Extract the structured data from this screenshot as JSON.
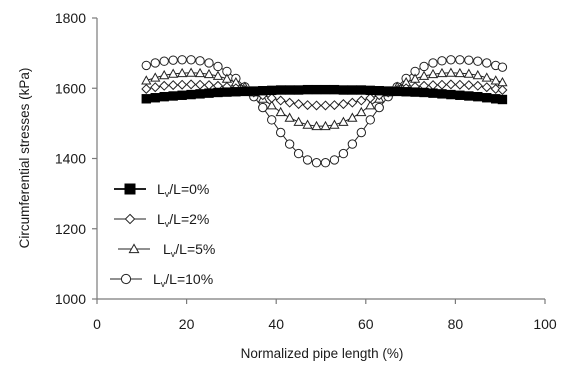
{
  "chart_data": {
    "type": "line",
    "title": "",
    "xlabel": "Normalized pipe length (%)",
    "ylabel": "Circumferential stresses (kPa)",
    "xlim": [
      0,
      100
    ],
    "ylim": [
      1000,
      1800
    ],
    "x_ticks": [
      "0",
      "20",
      "40",
      "60",
      "80",
      "100"
    ],
    "y_ticks": [
      "1000",
      "1200",
      "1400",
      "1600",
      "1800"
    ],
    "grid": false,
    "legend_position": "left",
    "x": [
      11,
      13,
      15,
      17,
      19,
      21,
      23,
      25,
      27,
      29,
      31,
      33,
      35,
      37,
      39,
      41,
      43,
      45,
      47,
      49,
      51,
      53,
      55,
      57,
      59,
      61,
      63,
      65,
      67,
      69,
      71,
      73,
      75,
      77,
      79,
      81,
      83,
      85,
      87,
      89,
      90.5
    ],
    "series": [
      {
        "name": "Lv/L=0%",
        "label_main": "L",
        "label_sub": "v",
        "label_rest": "/L=0%",
        "marker": "filled-square",
        "values": [
          1570,
          1573,
          1576,
          1578,
          1580,
          1582,
          1584,
          1586,
          1588,
          1589,
          1590,
          1591,
          1592,
          1593,
          1594,
          1595,
          1595,
          1595,
          1596,
          1596,
          1596,
          1596,
          1595,
          1595,
          1595,
          1594,
          1593,
          1592,
          1591,
          1590,
          1589,
          1588,
          1586,
          1584,
          1582,
          1580,
          1578,
          1576,
          1573,
          1570,
          1568
        ]
      },
      {
        "name": "Lv/L=2%",
        "label_main": "L",
        "label_sub": "v",
        "label_rest": "/L=2%",
        "marker": "diamond",
        "values": [
          1598,
          1603,
          1607,
          1609,
          1610,
          1611,
          1610,
          1609,
          1607,
          1604,
          1600,
          1595,
          1588,
          1580,
          1572,
          1565,
          1559,
          1555,
          1552,
          1551,
          1551,
          1552,
          1555,
          1559,
          1565,
          1572,
          1580,
          1588,
          1595,
          1600,
          1604,
          1607,
          1609,
          1610,
          1611,
          1610,
          1609,
          1607,
          1603,
          1598,
          1595
        ]
      },
      {
        "name": "Lv/L=5%",
        "label_main": "L",
        "label_sub": "v",
        "label_rest": "/L=5%",
        "marker": "triangle",
        "values": [
          1622,
          1630,
          1637,
          1641,
          1643,
          1644,
          1643,
          1640,
          1635,
          1627,
          1617,
          1604,
          1588,
          1570,
          1551,
          1532,
          1516,
          1504,
          1496,
          1492,
          1492,
          1496,
          1504,
          1516,
          1532,
          1551,
          1570,
          1588,
          1604,
          1617,
          1627,
          1635,
          1640,
          1643,
          1644,
          1643,
          1641,
          1637,
          1630,
          1622,
          1617
        ]
      },
      {
        "name": "Lv/L=10%",
        "label_main": "L",
        "label_sub": "v",
        "label_rest": "/L=10%",
        "marker": "circle",
        "values": [
          1665,
          1672,
          1677,
          1680,
          1681,
          1681,
          1678,
          1672,
          1662,
          1648,
          1628,
          1604,
          1576,
          1545,
          1510,
          1474,
          1441,
          1414,
          1396,
          1388,
          1388,
          1396,
          1414,
          1441,
          1474,
          1510,
          1545,
          1576,
          1604,
          1628,
          1648,
          1662,
          1672,
          1678,
          1681,
          1681,
          1680,
          1677,
          1672,
          1665,
          1660
        ]
      }
    ]
  }
}
